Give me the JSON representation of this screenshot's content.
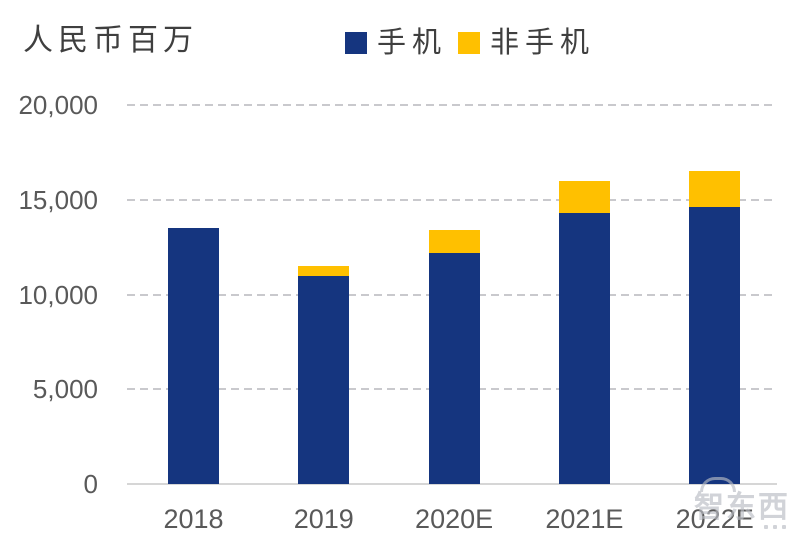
{
  "chart": {
    "unit_label": "人民币百万",
    "watermark_text": "智东西"
  },
  "chart_data": {
    "type": "bar",
    "stacked": true,
    "title": "",
    "unit_label": "人民币百万",
    "categories": [
      "2018",
      "2019",
      "2020E",
      "2021E",
      "2022E"
    ],
    "series": [
      {
        "name": "手机",
        "color": "#15357F",
        "values": [
          13500,
          11000,
          12200,
          14300,
          14600
        ]
      },
      {
        "name": "非手机",
        "color": "#FFC000",
        "values": [
          0,
          500,
          1200,
          1700,
          1900
        ]
      }
    ],
    "totals": [
      13500,
      11500,
      13400,
      16000,
      16500
    ],
    "ylim": [
      0,
      20000
    ],
    "yticks": [
      0,
      5000,
      10000,
      15000,
      20000
    ],
    "ytick_labels": [
      "0",
      "5,000",
      "10,000",
      "15,000",
      "20,000"
    ],
    "grid": "horizontal-dashed",
    "legend_position": "top-center",
    "axis_text_color": "#595959",
    "gridline_color": "#c9c9cd"
  }
}
